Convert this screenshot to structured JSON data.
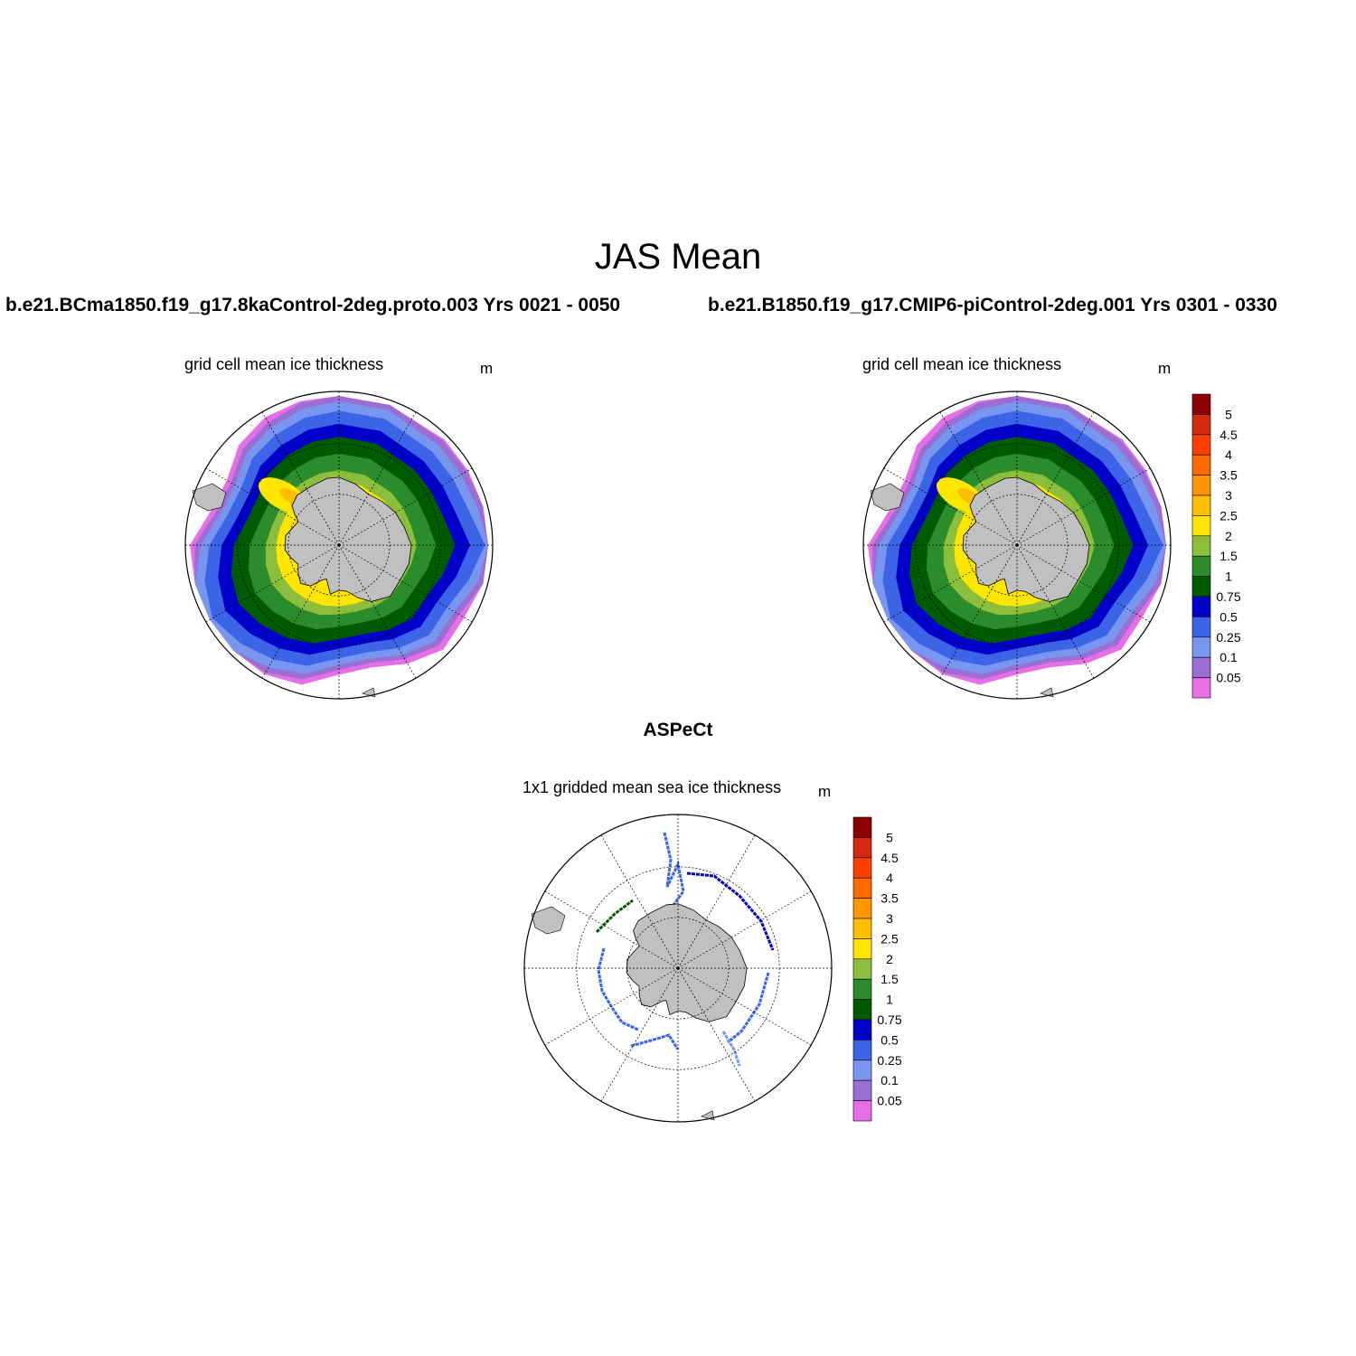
{
  "figure": {
    "title": "JAS Mean",
    "left_case": "b.e21.BCma1850.f19_g17.8kaControl-2deg.proto.003  Yrs 0021 - 0050",
    "right_case": "b.e21.B1850.f19_g17.CMIP6-piControl-2deg.001  Yrs 0301 - 0330",
    "obs_title": "ASPeCt"
  },
  "panels": [
    {
      "id": "left",
      "subtitle": "grid cell mean ice thickness",
      "unit": "m"
    },
    {
      "id": "right",
      "subtitle": "grid cell mean ice thickness",
      "unit": "m"
    },
    {
      "id": "obs",
      "subtitle": "1x1 gridded mean sea ice thickness",
      "unit": "m"
    }
  ],
  "legend": {
    "labels": [
      "5",
      "4.5",
      "4",
      "3.5",
      "3",
      "2.5",
      "2",
      "1.5",
      "1",
      "0.75",
      "0.5",
      "0.25",
      "0.1",
      "0.05"
    ],
    "colors": [
      "#8b0000",
      "#d42a10",
      "#ff3f00",
      "#ff6a00",
      "#ff9600",
      "#ffbe00",
      "#ffe600",
      "#8cbe3c",
      "#2a8c2a",
      "#005a00",
      "#0000c8",
      "#3c64e6",
      "#7896f0",
      "#9b6ed2",
      "#e66ee6"
    ]
  },
  "map": {
    "land_color": "#c0c0c0",
    "meridians_deg": [
      0,
      30,
      60,
      90,
      120,
      150,
      180,
      210,
      240,
      270,
      300,
      330
    ],
    "parallels": "dotted circles at 60S and 75S"
  }
}
